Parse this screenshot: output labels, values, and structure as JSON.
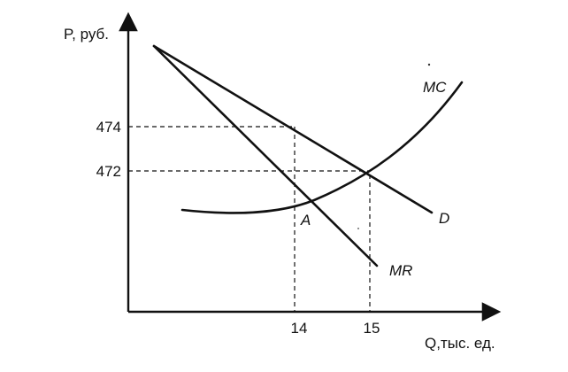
{
  "diagram": {
    "axes": {
      "y_label": "P, руб.",
      "x_label": "Q,тыс. ед."
    },
    "y_ticks": [
      "474",
      "472"
    ],
    "x_ticks": [
      "14",
      "15"
    ],
    "curves": {
      "mc": "MC",
      "d": "D",
      "mr": "MR"
    },
    "point_label": "A"
  }
}
